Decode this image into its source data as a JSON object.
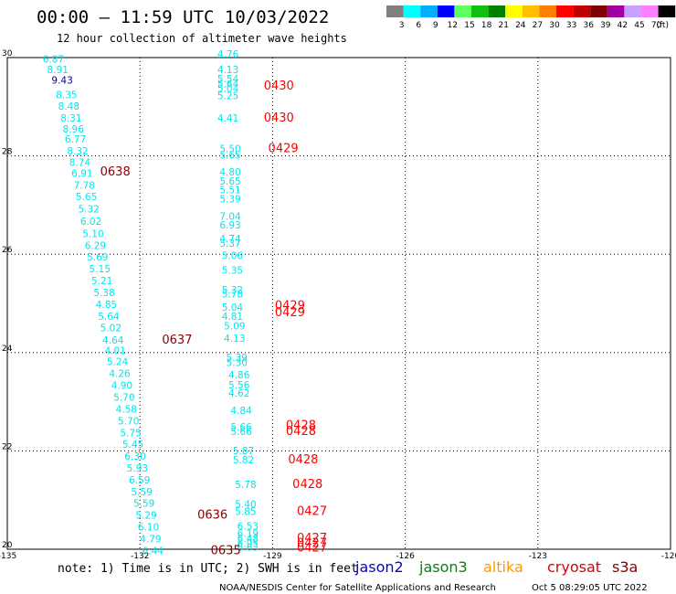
{
  "title": "00:00 – 11:59 UTC 10/03/2022",
  "subtitle": "12 hour collection of altimeter wave heights",
  "colorbar": {
    "labels": [
      "3",
      "6",
      "9",
      "12",
      "15",
      "18",
      "21",
      "24",
      "27",
      "30",
      "33",
      "36",
      "39",
      "42",
      "45",
      "70",
      "(ft)"
    ],
    "colors": [
      "#7f7f7f",
      "#00ffff",
      "#00b0ff",
      "#0000ff",
      "#60ff60",
      "#10c010",
      "#008000",
      "#ffff00",
      "#ffc000",
      "#ff7f00",
      "#ff0000",
      "#c00000",
      "#7f0000",
      "#a000a0",
      "#c8a0ff",
      "#ff80ff",
      "#000000"
    ]
  },
  "note": "note: 1) Time is in UTC; 2) SWH is in feet",
  "missions": [
    {
      "name": "jason2",
      "color": "#0000dd"
    },
    {
      "name": "jason3",
      "color": "#008800"
    },
    {
      "name": "altika",
      "color": "#ff9900"
    },
    {
      "name": "cryosat",
      "color": "#dd0000"
    },
    {
      "name": "s3a",
      "color": "#880000"
    }
  ],
  "footer": "NOAA/NESDIS Center for Satellite Applications and Research",
  "footer_time": "Oct  5 08:29:05 UTC 2022",
  "chart_data": {
    "type": "scatter",
    "x_ticks": [
      "-135",
      "-132",
      "-129",
      "-126",
      "-123",
      "-120"
    ],
    "y_ticks": [
      "20",
      "22",
      "24",
      "26",
      "28",
      "30"
    ],
    "xlim": [
      -135,
      -120
    ],
    "ylim": [
      20,
      30
    ],
    "grid": true,
    "color_scale": {
      "cyan": "#00e5ee",
      "navy": "#00008b",
      "red": "#ff0000",
      "darkred": "#880000"
    },
    "points": [
      {
        "x": -134.2,
        "y": 29.9,
        "v": "6.87",
        "c": "cyan"
      },
      {
        "x": -134.1,
        "y": 29.68,
        "v": "8.91",
        "c": "cyan"
      },
      {
        "x": -134.0,
        "y": 29.47,
        "v": "9.43",
        "c": "navy"
      },
      {
        "x": -133.9,
        "y": 29.17,
        "v": "8.35",
        "c": "cyan"
      },
      {
        "x": -133.85,
        "y": 28.94,
        "v": "8.48",
        "c": "cyan"
      },
      {
        "x": -133.8,
        "y": 28.7,
        "v": "8.31",
        "c": "cyan"
      },
      {
        "x": -133.75,
        "y": 28.48,
        "v": "8.96",
        "c": "cyan"
      },
      {
        "x": -133.7,
        "y": 28.27,
        "v": "6.77",
        "c": "cyan"
      },
      {
        "x": -133.65,
        "y": 28.03,
        "v": "8.32",
        "c": "cyan"
      },
      {
        "x": -133.6,
        "y": 27.8,
        "v": "8.74",
        "c": "cyan"
      },
      {
        "x": -133.55,
        "y": 27.57,
        "v": "6.91",
        "c": "cyan"
      },
      {
        "x": -133.5,
        "y": 27.33,
        "v": "7.78",
        "c": "cyan"
      },
      {
        "x": -133.45,
        "y": 27.1,
        "v": "5.65",
        "c": "cyan"
      },
      {
        "x": -133.4,
        "y": 26.85,
        "v": "5.32",
        "c": "cyan"
      },
      {
        "x": -133.35,
        "y": 26.6,
        "v": "6.02",
        "c": "cyan"
      },
      {
        "x": -133.3,
        "y": 26.35,
        "v": "5.10",
        "c": "cyan"
      },
      {
        "x": -133.25,
        "y": 26.11,
        "v": "6.29",
        "c": "cyan"
      },
      {
        "x": -133.2,
        "y": 25.87,
        "v": "5.69",
        "c": "cyan"
      },
      {
        "x": -133.15,
        "y": 25.63,
        "v": "5.15",
        "c": "cyan"
      },
      {
        "x": -133.1,
        "y": 25.39,
        "v": "5.21",
        "c": "cyan"
      },
      {
        "x": -133.05,
        "y": 25.15,
        "v": "5.38",
        "c": "cyan"
      },
      {
        "x": -133.0,
        "y": 24.91,
        "v": "4.85",
        "c": "cyan"
      },
      {
        "x": -132.95,
        "y": 24.67,
        "v": "5.64",
        "c": "cyan"
      },
      {
        "x": -132.9,
        "y": 24.43,
        "v": "5.02",
        "c": "cyan"
      },
      {
        "x": -132.85,
        "y": 24.18,
        "v": "4.64",
        "c": "cyan"
      },
      {
        "x": -132.8,
        "y": 23.97,
        "v": "4.01",
        "c": "cyan"
      },
      {
        "x": -132.75,
        "y": 23.75,
        "v": "5.24",
        "c": "cyan"
      },
      {
        "x": -132.7,
        "y": 23.5,
        "v": "4.26",
        "c": "cyan"
      },
      {
        "x": -132.65,
        "y": 23.26,
        "v": "4.90",
        "c": "cyan"
      },
      {
        "x": -132.6,
        "y": 23.02,
        "v": "5.70",
        "c": "cyan"
      },
      {
        "x": -132.55,
        "y": 22.78,
        "v": "4.58",
        "c": "cyan"
      },
      {
        "x": -132.5,
        "y": 22.54,
        "v": "5.70",
        "c": "cyan"
      },
      {
        "x": -132.45,
        "y": 22.3,
        "v": "5.75",
        "c": "cyan"
      },
      {
        "x": -132.4,
        "y": 22.06,
        "v": "5.45",
        "c": "cyan"
      },
      {
        "x": -132.35,
        "y": 21.82,
        "v": "6.30",
        "c": "cyan"
      },
      {
        "x": -132.3,
        "y": 21.58,
        "v": "5.93",
        "c": "cyan"
      },
      {
        "x": -132.25,
        "y": 21.34,
        "v": "6.59",
        "c": "cyan"
      },
      {
        "x": -132.2,
        "y": 21.1,
        "v": "5.59",
        "c": "cyan"
      },
      {
        "x": -132.15,
        "y": 20.86,
        "v": "5.59",
        "c": "cyan"
      },
      {
        "x": -132.1,
        "y": 20.62,
        "v": "5.29",
        "c": "cyan"
      },
      {
        "x": -132.05,
        "y": 20.38,
        "v": "6.10",
        "c": "cyan"
      },
      {
        "x": -132.0,
        "y": 20.14,
        "v": "4.79",
        "c": "cyan"
      },
      {
        "x": -131.95,
        "y": 19.9,
        "v": "6.44",
        "c": "cyan"
      },
      {
        "x": -130.25,
        "y": 30.0,
        "v": "4.76",
        "c": "cyan"
      },
      {
        "x": -130.25,
        "y": 29.68,
        "v": "4.13",
        "c": "cyan"
      },
      {
        "x": -130.25,
        "y": 29.5,
        "v": "5.54",
        "c": "cyan"
      },
      {
        "x": -130.25,
        "y": 29.4,
        "v": "5.64",
        "c": "cyan"
      },
      {
        "x": -130.25,
        "y": 29.3,
        "v": "5.04",
        "c": "cyan"
      },
      {
        "x": -130.25,
        "y": 29.15,
        "v": "5.25",
        "c": "cyan"
      },
      {
        "x": -130.25,
        "y": 28.7,
        "v": "4.41",
        "c": "cyan"
      },
      {
        "x": -130.2,
        "y": 28.08,
        "v": "5.50",
        "c": "cyan"
      },
      {
        "x": -130.2,
        "y": 27.95,
        "v": "5.65",
        "c": "cyan"
      },
      {
        "x": -130.2,
        "y": 27.6,
        "v": "4.80",
        "c": "cyan"
      },
      {
        "x": -130.2,
        "y": 27.42,
        "v": "5.65",
        "c": "cyan"
      },
      {
        "x": -130.2,
        "y": 27.24,
        "v": "5.51",
        "c": "cyan"
      },
      {
        "x": -130.2,
        "y": 27.05,
        "v": "5.39",
        "c": "cyan"
      },
      {
        "x": -130.2,
        "y": 26.7,
        "v": "7.04",
        "c": "cyan"
      },
      {
        "x": -130.2,
        "y": 26.52,
        "v": "6.93",
        "c": "cyan"
      },
      {
        "x": -130.2,
        "y": 26.25,
        "v": "4.74",
        "c": "cyan"
      },
      {
        "x": -130.2,
        "y": 26.15,
        "v": "5.37",
        "c": "cyan"
      },
      {
        "x": -130.15,
        "y": 25.9,
        "v": "5.06",
        "c": "cyan"
      },
      {
        "x": -130.15,
        "y": 25.6,
        "v": "5.35",
        "c": "cyan"
      },
      {
        "x": -130.15,
        "y": 25.2,
        "v": "5.32",
        "c": "cyan"
      },
      {
        "x": -130.15,
        "y": 25.12,
        "v": "5.78",
        "c": "cyan"
      },
      {
        "x": -130.15,
        "y": 24.85,
        "v": "5.04",
        "c": "cyan"
      },
      {
        "x": -130.15,
        "y": 24.67,
        "v": "4.81",
        "c": "cyan"
      },
      {
        "x": -130.1,
        "y": 24.47,
        "v": "5.09",
        "c": "cyan"
      },
      {
        "x": -130.1,
        "y": 24.22,
        "v": "4.13",
        "c": "cyan"
      },
      {
        "x": -130.05,
        "y": 23.83,
        "v": "5.39",
        "c": "cyan"
      },
      {
        "x": -130.05,
        "y": 23.73,
        "v": "5.30",
        "c": "cyan"
      },
      {
        "x": -130.0,
        "y": 23.48,
        "v": "4.86",
        "c": "cyan"
      },
      {
        "x": -130.0,
        "y": 23.27,
        "v": "5.56",
        "c": "cyan"
      },
      {
        "x": -130.0,
        "y": 23.1,
        "v": "4.62",
        "c": "cyan"
      },
      {
        "x": -129.95,
        "y": 22.75,
        "v": "4.84",
        "c": "cyan"
      },
      {
        "x": -129.95,
        "y": 22.42,
        "v": "5.66",
        "c": "cyan"
      },
      {
        "x": -129.95,
        "y": 22.32,
        "v": "5.66",
        "c": "cyan"
      },
      {
        "x": -129.9,
        "y": 21.93,
        "v": "5.87",
        "c": "cyan"
      },
      {
        "x": -129.9,
        "y": 21.75,
        "v": "5.82",
        "c": "cyan"
      },
      {
        "x": -129.85,
        "y": 21.25,
        "v": "5.78",
        "c": "cyan"
      },
      {
        "x": -129.85,
        "y": 20.85,
        "v": "5.40",
        "c": "cyan"
      },
      {
        "x": -129.85,
        "y": 20.7,
        "v": "5.85",
        "c": "cyan"
      },
      {
        "x": -129.8,
        "y": 20.4,
        "v": "6.53",
        "c": "cyan"
      },
      {
        "x": -129.8,
        "y": 20.25,
        "v": "6.19",
        "c": "cyan"
      },
      {
        "x": -129.8,
        "y": 20.15,
        "v": "6.48",
        "c": "cyan"
      },
      {
        "x": -129.8,
        "y": 20.05,
        "v": "6.95",
        "c": "cyan"
      },
      {
        "x": -129.8,
        "y": 19.97,
        "v": "6.63",
        "c": "cyan"
      }
    ],
    "pass_labels": [
      {
        "x": -132.9,
        "y": 27.6,
        "v": "0638",
        "c": "darkred"
      },
      {
        "x": -131.5,
        "y": 24.18,
        "v": "0637",
        "c": "darkred"
      },
      {
        "x": -130.7,
        "y": 20.62,
        "v": "0636",
        "c": "darkred"
      },
      {
        "x": -130.4,
        "y": 19.9,
        "v": "0635",
        "c": "darkred"
      },
      {
        "x": -129.2,
        "y": 29.35,
        "v": "0430",
        "c": "red"
      },
      {
        "x": -129.2,
        "y": 28.7,
        "v": "0430",
        "c": "red"
      },
      {
        "x": -129.1,
        "y": 28.08,
        "v": "0429",
        "c": "red"
      },
      {
        "x": -128.95,
        "y": 24.88,
        "v": "0429",
        "c": "red"
      },
      {
        "x": -128.95,
        "y": 24.74,
        "v": "0429",
        "c": "red"
      },
      {
        "x": -128.7,
        "y": 22.44,
        "v": "0428",
        "c": "red"
      },
      {
        "x": -128.7,
        "y": 22.32,
        "v": "0428",
        "c": "red"
      },
      {
        "x": -128.65,
        "y": 21.75,
        "v": "0428",
        "c": "red"
      },
      {
        "x": -128.55,
        "y": 21.25,
        "v": "0428",
        "c": "red"
      },
      {
        "x": -128.45,
        "y": 20.7,
        "v": "0427",
        "c": "red"
      },
      {
        "x": -128.45,
        "y": 20.15,
        "v": "0427",
        "c": "red"
      },
      {
        "x": -128.45,
        "y": 20.05,
        "v": "0427",
        "c": "red"
      },
      {
        "x": -128.45,
        "y": 19.95,
        "v": "0427",
        "c": "red"
      }
    ]
  }
}
